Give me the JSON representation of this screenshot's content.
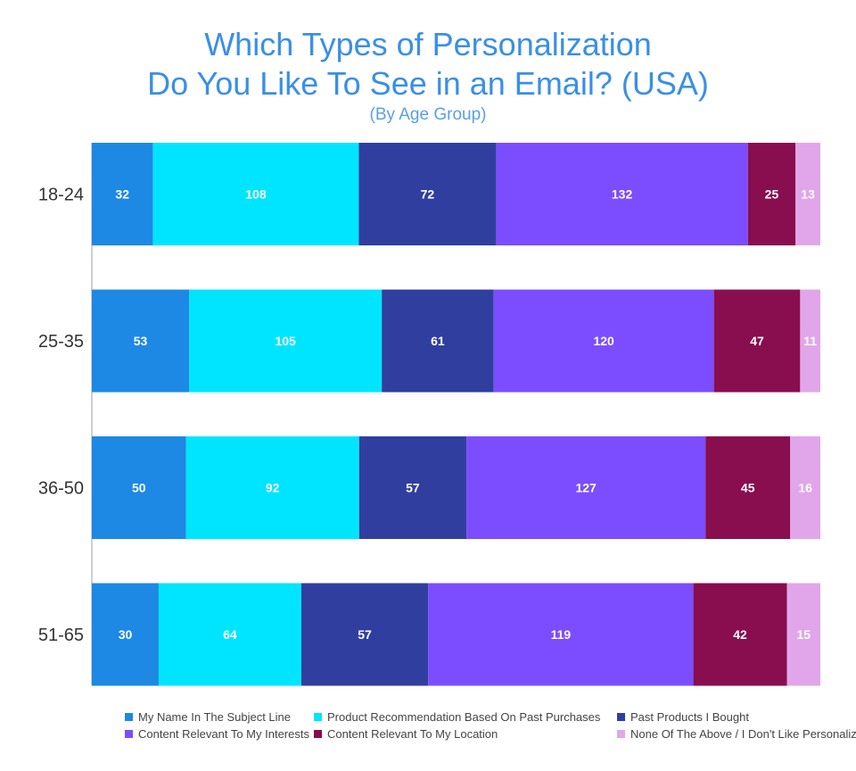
{
  "chart_data": {
    "type": "bar",
    "orientation": "horizontal",
    "stacked": true,
    "title_line1": "Which Types of Personalization",
    "title_line2": "Do You Like To See in an Email? (USA)",
    "subtitle": "(By Age Group)",
    "categories": [
      "18-24",
      "25-35",
      "36-50",
      "51-65"
    ],
    "series": [
      {
        "name": "My Name In The Subject Line",
        "color": "#1e88e5",
        "values": [
          32,
          53,
          50,
          30
        ]
      },
      {
        "name": "Product Recommendation Based On Past Purchases",
        "color": "#00e5ff",
        "values": [
          108,
          105,
          92,
          64
        ]
      },
      {
        "name": "Past Products I Bought",
        "color": "#303f9f",
        "values": [
          72,
          61,
          57,
          57
        ]
      },
      {
        "name": "Content Relevant To My Interests",
        "color": "#7c4dff",
        "values": [
          132,
          120,
          127,
          119
        ]
      },
      {
        "name": "Content Relevant To My Location",
        "color": "#880e4f",
        "values": [
          25,
          47,
          45,
          42
        ]
      },
      {
        "name": "None Of The Above / I Don't Like Personalization",
        "color": "#e1a6ea",
        "values": [
          13,
          11,
          16,
          15
        ]
      }
    ],
    "legend_position": "bottom"
  }
}
